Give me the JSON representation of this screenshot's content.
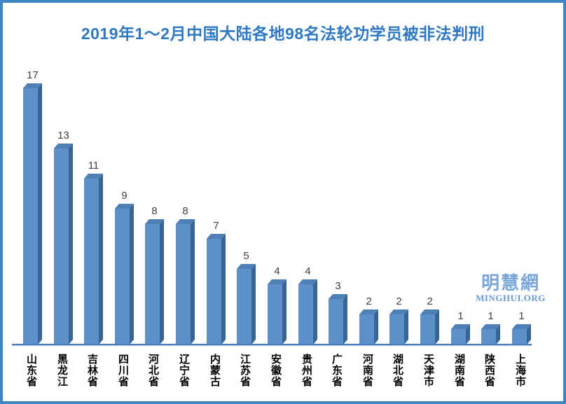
{
  "page": {
    "border_color": "#3d86c6",
    "background_color": "#ffffff",
    "title_color": "#2e78c4"
  },
  "watermark": {
    "cjk": "明慧網",
    "latin": "MINGHUI.ORG",
    "color": "#79a6da"
  },
  "chart_data": {
    "type": "bar",
    "style": "3d-column",
    "title": "2019年1～2月中国大陆各地98名法轮功学员被非法判刑",
    "total": 98,
    "categories": [
      "山东省",
      "黑龙江",
      "吉林省",
      "四川省",
      "河北省",
      "辽宁省",
      "内蒙古",
      "江苏省",
      "安徽省",
      "贵州省",
      "广东省",
      "河南省",
      "湖北省",
      "天津市",
      "湖南省",
      "陕西省",
      "上海市"
    ],
    "values": [
      17,
      13,
      11,
      9,
      8,
      8,
      7,
      5,
      4,
      4,
      3,
      2,
      2,
      2,
      1,
      1,
      1
    ],
    "xlabel": "",
    "ylabel": "",
    "ylim": [
      0,
      18
    ],
    "gridlines": false,
    "legend": false,
    "y_axis_visible": false,
    "bar_color_front": "#5b90cb",
    "bar_color_top": "#4e80b6",
    "bar_color_side": "#3a6492",
    "axis_line_color": "#4a7dbd",
    "axis_subline_color": "#aac5e3",
    "value_label_color": "#404040",
    "category_label_color": "#000000"
  }
}
